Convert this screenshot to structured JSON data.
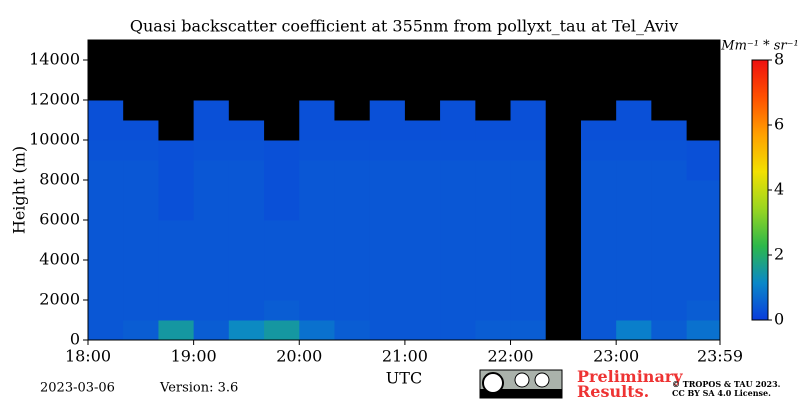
{
  "chart_data": {
    "type": "heatmap",
    "title": "Quasi backscatter coefficient at 355nm from pollyxt_tau at Tel_Aviv",
    "x_label": "UTC",
    "y_label": "Height (m)",
    "colorbar_label": "Mm⁻¹ * sr⁻¹",
    "x_edges": [
      18,
      18.333,
      18.667,
      19,
      19.333,
      19.667,
      20,
      20.333,
      20.667,
      21,
      21.333,
      21.667,
      22,
      22.333,
      22.667,
      23,
      23.333,
      23.667,
      24
    ],
    "y_edges": [
      0,
      1000,
      2000,
      3000,
      4000,
      5000,
      6000,
      7000,
      8000,
      9000,
      10000,
      11000,
      12000,
      13000,
      14000,
      15000
    ],
    "z": [
      [
        0.4,
        0.5,
        1.5,
        0.5,
        1.2,
        1.5,
        0.8,
        0.5,
        0.4,
        0.4,
        0.4,
        0.5,
        0.5,
        null,
        0.4,
        1.0,
        0.5,
        0.8
      ],
      [
        0.4,
        0.4,
        0.4,
        0.4,
        0.4,
        0.5,
        0.4,
        0.4,
        0.4,
        0.4,
        0.4,
        0.4,
        0.4,
        null,
        0.4,
        0.4,
        0.4,
        0.5
      ],
      [
        0.4,
        0.4,
        0.4,
        0.4,
        0.4,
        0.4,
        0.4,
        0.4,
        0.4,
        0.4,
        0.4,
        0.4,
        0.4,
        null,
        0.4,
        0.4,
        0.4,
        0.4
      ],
      [
        0.4,
        0.4,
        0.4,
        0.4,
        0.4,
        0.4,
        0.4,
        0.4,
        0.4,
        0.4,
        0.4,
        0.4,
        0.4,
        null,
        0.4,
        0.4,
        0.4,
        0.4
      ],
      [
        0.4,
        0.4,
        0.4,
        0.4,
        0.4,
        0.4,
        0.4,
        0.4,
        0.4,
        0.4,
        0.4,
        0.4,
        0.4,
        null,
        0.4,
        0.4,
        0.4,
        0.4
      ],
      [
        0.4,
        0.4,
        0.4,
        0.4,
        0.4,
        0.4,
        0.4,
        0.4,
        0.4,
        0.4,
        0.4,
        0.4,
        0.4,
        null,
        0.4,
        0.4,
        0.4,
        0.4
      ],
      [
        0.4,
        0.4,
        0.3,
        0.4,
        0.4,
        0.3,
        0.4,
        0.4,
        0.4,
        0.4,
        0.4,
        0.4,
        0.4,
        null,
        0.4,
        0.4,
        0.4,
        0.4
      ],
      [
        0.4,
        0.4,
        0.3,
        0.4,
        0.4,
        0.3,
        0.4,
        0.4,
        0.4,
        0.4,
        0.4,
        0.4,
        0.4,
        null,
        0.4,
        0.4,
        0.4,
        0.4
      ],
      [
        0.4,
        0.4,
        0.3,
        0.4,
        0.4,
        0.3,
        0.4,
        0.4,
        0.4,
        0.4,
        0.4,
        0.4,
        0.4,
        null,
        0.4,
        0.4,
        0.4,
        0.3
      ],
      [
        0.35,
        0.35,
        0.3,
        0.35,
        0.35,
        0.3,
        0.35,
        0.35,
        0.35,
        0.35,
        0.35,
        0.35,
        0.35,
        null,
        0.35,
        0.35,
        0.35,
        0.3
      ],
      [
        0.3,
        0.3,
        null,
        0.3,
        0.3,
        null,
        0.3,
        0.3,
        0.3,
        0.3,
        0.3,
        0.3,
        0.3,
        null,
        0.3,
        0.3,
        0.3,
        null
      ],
      [
        0.3,
        null,
        null,
        0.3,
        null,
        null,
        0.3,
        null,
        0.3,
        null,
        0.3,
        null,
        0.3,
        null,
        null,
        0.3,
        null,
        null
      ],
      [
        null,
        null,
        null,
        null,
        null,
        null,
        null,
        null,
        null,
        null,
        null,
        null,
        null,
        null,
        null,
        null,
        null,
        null
      ],
      [
        null,
        null,
        null,
        null,
        null,
        null,
        null,
        null,
        null,
        null,
        null,
        null,
        null,
        null,
        null,
        null,
        null,
        null
      ],
      [
        null,
        null,
        null,
        null,
        null,
        null,
        null,
        null,
        null,
        null,
        null,
        null,
        null,
        null,
        null,
        null,
        null,
        null
      ]
    ],
    "xlim": [
      18,
      23.983
    ],
    "xticks": [
      {
        "value": 18,
        "label": "18:00"
      },
      {
        "value": 19,
        "label": "19:00"
      },
      {
        "value": 20,
        "label": "20:00"
      },
      {
        "value": 21,
        "label": "21:00"
      },
      {
        "value": 22,
        "label": "22:00"
      },
      {
        "value": 23,
        "label": "23:00"
      },
      {
        "value": 23.983,
        "label": "23:59"
      }
    ],
    "ylim": [
      0,
      15000
    ],
    "yticks": [
      0,
      2000,
      4000,
      6000,
      8000,
      10000,
      12000,
      14000
    ],
    "clim": [
      0,
      8
    ],
    "cticks": [
      0,
      2,
      4,
      6,
      8
    ],
    "colormap": [
      "#0a3cdc",
      "#0a88c8",
      "#2db84a",
      "#9ad620",
      "#f2e000",
      "#ffa000",
      "#ff5000",
      "#ee1010"
    ],
    "nodata_color": "#000000"
  },
  "footer": {
    "date": "2023-03-06",
    "version": "Version: 3.6",
    "notice": "Preliminary Results.",
    "copyright": "© TROPOS & TAU 2023.",
    "license": "CC BY SA 4.0 License."
  }
}
